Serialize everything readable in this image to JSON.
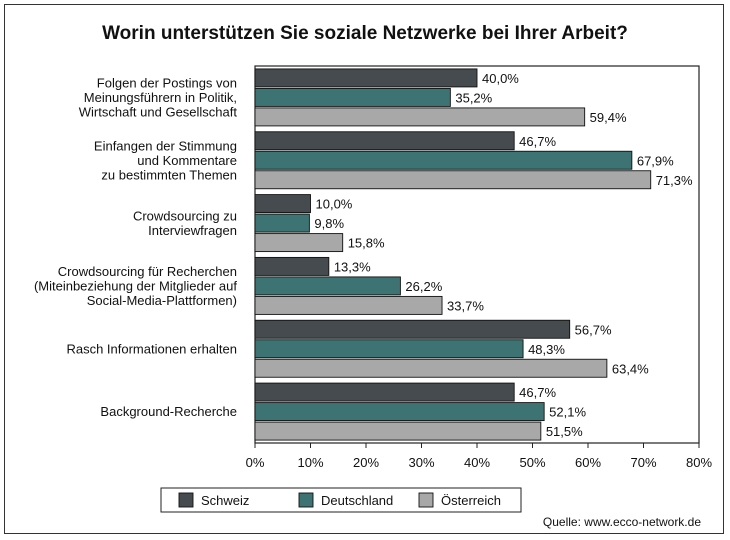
{
  "title": "Worin unterstützen Sie soziale Netzwerke bei Ihrer Arbeit?",
  "source": "Quelle: www.ecco-network.de",
  "chart_data": {
    "type": "bar",
    "orientation": "horizontal",
    "title": "Worin unterstützen Sie soziale Netzwerke bei Ihrer Arbeit?",
    "categories": [
      [
        "Folgen der Postings von",
        "Meinungsführern in Politik,",
        "Wirtschaft und Gesellschaft"
      ],
      [
        "Einfangen der Stimmung",
        "und Kommentare",
        "zu bestimmten Themen"
      ],
      [
        "Crowdsourcing zu",
        "Interviewfragen"
      ],
      [
        "Crowdsourcing für Recherchen",
        "(Miteinbeziehung der Mitglieder auf",
        "Social-Media-Plattformen)"
      ],
      [
        "Rasch Informationen erhalten"
      ],
      [
        "Background-Recherche"
      ]
    ],
    "series": [
      {
        "name": "Schweiz",
        "color": "#454b4e",
        "values": [
          40.0,
          46.7,
          10.0,
          13.3,
          56.7,
          46.7
        ],
        "labels": [
          "40,0%",
          "46,7%",
          "10,0%",
          "13,3%",
          "56,7%",
          "46,7%"
        ]
      },
      {
        "name": "Deutschland",
        "color": "#3d7373",
        "values": [
          35.2,
          67.9,
          9.8,
          26.2,
          48.3,
          52.1
        ],
        "labels": [
          "35,2%",
          "67,9%",
          "9,8%",
          "26,2%",
          "48,3%",
          "52,1%"
        ]
      },
      {
        "name": "Österreich",
        "color": "#a8a8a8",
        "values": [
          59.4,
          71.3,
          15.8,
          33.7,
          63.4,
          51.5
        ],
        "labels": [
          "59,4%",
          "71,3%",
          "15,8%",
          "33,7%",
          "63,4%",
          "51,5%"
        ]
      }
    ],
    "xlim": [
      0,
      80
    ],
    "xticks": [
      0,
      10,
      20,
      30,
      40,
      50,
      60,
      70,
      80
    ],
    "xtick_labels": [
      "0%",
      "10%",
      "20%",
      "30%",
      "40%",
      "50%",
      "60%",
      "70%",
      "80%"
    ],
    "xlabel": "",
    "ylabel": "",
    "grid": false,
    "legend_position": "bottom"
  }
}
